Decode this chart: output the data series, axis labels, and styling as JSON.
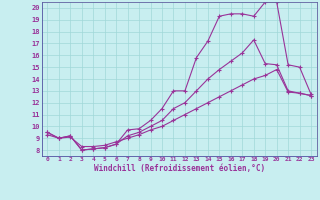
{
  "xlabel": "Windchill (Refroidissement éolien,°C)",
  "background_color": "#c8eef0",
  "line_color": "#993399",
  "grid_color": "#a0d8d8",
  "xlim": [
    -0.5,
    23.5
  ],
  "ylim": [
    7.5,
    20.5
  ],
  "xticks": [
    0,
    1,
    2,
    3,
    4,
    5,
    6,
    7,
    8,
    9,
    10,
    11,
    12,
    13,
    14,
    15,
    16,
    17,
    18,
    19,
    20,
    21,
    22,
    23
  ],
  "yticks": [
    8,
    9,
    10,
    11,
    12,
    13,
    14,
    15,
    16,
    17,
    18,
    19,
    20
  ],
  "series1_x": [
    0,
    1,
    2,
    3,
    4,
    5,
    6,
    7,
    8,
    9,
    10,
    11,
    12,
    13,
    14,
    15,
    16,
    17,
    18,
    19,
    20,
    21,
    22,
    23
  ],
  "series1_y": [
    9.5,
    9.0,
    9.2,
    8.0,
    8.1,
    8.2,
    8.5,
    9.7,
    9.8,
    10.5,
    11.5,
    13.0,
    13.0,
    15.8,
    17.2,
    19.3,
    19.5,
    19.5,
    19.3,
    20.5,
    20.5,
    15.2,
    15.0,
    12.7
  ],
  "series2_x": [
    0,
    1,
    2,
    3,
    4,
    5,
    6,
    7,
    8,
    9,
    10,
    11,
    12,
    13,
    14,
    15,
    16,
    17,
    18,
    19,
    20,
    21,
    22,
    23
  ],
  "series2_y": [
    9.5,
    9.0,
    9.2,
    8.0,
    8.1,
    8.2,
    8.5,
    9.2,
    9.5,
    10.0,
    10.5,
    11.5,
    12.0,
    13.0,
    14.0,
    14.8,
    15.5,
    16.2,
    17.3,
    15.3,
    15.2,
    13.0,
    12.8,
    12.6
  ],
  "series3_x": [
    0,
    1,
    2,
    3,
    4,
    5,
    6,
    7,
    8,
    9,
    10,
    11,
    12,
    13,
    14,
    15,
    16,
    17,
    18,
    19,
    20,
    21,
    22,
    23
  ],
  "series3_y": [
    9.3,
    9.0,
    9.1,
    8.3,
    8.3,
    8.4,
    8.7,
    9.0,
    9.3,
    9.7,
    10.0,
    10.5,
    11.0,
    11.5,
    12.0,
    12.5,
    13.0,
    13.5,
    14.0,
    14.3,
    14.8,
    12.9,
    12.8,
    12.6
  ]
}
